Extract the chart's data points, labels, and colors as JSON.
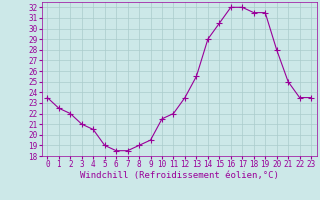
{
  "x": [
    0,
    1,
    2,
    3,
    4,
    5,
    6,
    7,
    8,
    9,
    10,
    11,
    12,
    13,
    14,
    15,
    16,
    17,
    18,
    19,
    20,
    21,
    22,
    23
  ],
  "y": [
    23.5,
    22.5,
    22.0,
    21.0,
    20.5,
    19.0,
    18.5,
    18.5,
    19.0,
    19.5,
    21.5,
    22.0,
    23.5,
    25.5,
    29.0,
    30.5,
    32.0,
    32.0,
    31.5,
    31.5,
    28.0,
    25.0,
    23.5,
    23.5
  ],
  "line_color": "#990099",
  "marker": "+",
  "marker_color": "#990099",
  "bg_color": "#cce8e8",
  "grid_color": "#aacccc",
  "xlabel": "Windchill (Refroidissement éolien,°C)",
  "xlabel_color": "#990099",
  "tick_color": "#990099",
  "ylim": [
    18,
    32.5
  ],
  "xlim": [
    -0.5,
    23.5
  ],
  "yticks": [
    18,
    19,
    20,
    21,
    22,
    23,
    24,
    25,
    26,
    27,
    28,
    29,
    30,
    31,
    32
  ],
  "xticks": [
    0,
    1,
    2,
    3,
    4,
    5,
    6,
    7,
    8,
    9,
    10,
    11,
    12,
    13,
    14,
    15,
    16,
    17,
    18,
    19,
    20,
    21,
    22,
    23
  ],
  "tick_fontsize": 5.5,
  "xlabel_fontsize": 6.5
}
